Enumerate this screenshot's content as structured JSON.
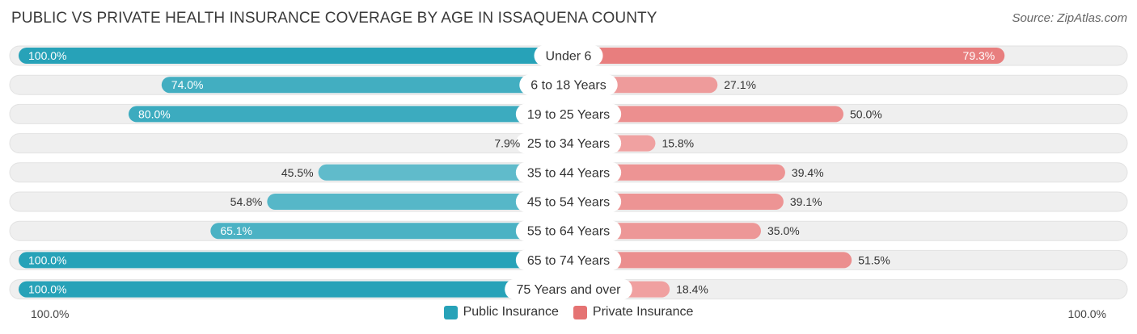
{
  "title": "PUBLIC VS PRIVATE HEALTH INSURANCE COVERAGE BY AGE IN ISSAQUENA COUNTY",
  "source": "Source: ZipAtlas.com",
  "colors": {
    "public_dark": "#27a2b8",
    "public_light": "#8fd0db",
    "private_dark": "#e57373",
    "private_light": "#f2aaaa",
    "track": "#efefef"
  },
  "axis": {
    "left_label": "100.0%",
    "right_label": "100.0%"
  },
  "legend": {
    "public": "Public Insurance",
    "private": "Private Insurance"
  },
  "chart_data": {
    "type": "bar",
    "orientation": "horizontal-diverging",
    "title": "PUBLIC VS PRIVATE HEALTH INSURANCE COVERAGE BY AGE IN ISSAQUENA COUNTY",
    "categories": [
      "Under 6",
      "6 to 18 Years",
      "19 to 25 Years",
      "25 to 34 Years",
      "35 to 44 Years",
      "45 to 54 Years",
      "55 to 64 Years",
      "65 to 74 Years",
      "75 Years and over"
    ],
    "series": [
      {
        "name": "Public Insurance",
        "values": [
          100.0,
          74.0,
          80.0,
          7.9,
          45.5,
          54.8,
          65.1,
          100.0,
          100.0
        ],
        "labels": [
          "100.0%",
          "74.0%",
          "80.0%",
          "7.9%",
          "45.5%",
          "54.8%",
          "65.1%",
          "100.0%",
          "100.0%"
        ]
      },
      {
        "name": "Private Insurance",
        "values": [
          79.3,
          27.1,
          50.0,
          15.8,
          39.4,
          39.1,
          35.0,
          51.5,
          18.4
        ],
        "labels": [
          "79.3%",
          "27.1%",
          "50.0%",
          "15.8%",
          "39.4%",
          "39.1%",
          "35.0%",
          "51.5%",
          "18.4%"
        ]
      }
    ],
    "xlim": [
      -100,
      100
    ],
    "legend_position": "bottom-center"
  }
}
